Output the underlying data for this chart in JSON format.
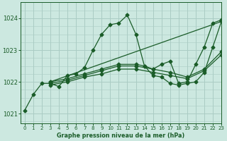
{
  "title": "Graphe pression niveau de la mer (hPa)",
  "bg_color": "#cce8e0",
  "grid_color": "#aaccc4",
  "line_color": "#1a5c28",
  "xlim": [
    -0.5,
    23
  ],
  "ylim": [
    1020.7,
    1024.5
  ],
  "xticks": [
    0,
    1,
    2,
    3,
    4,
    5,
    6,
    7,
    8,
    9,
    10,
    11,
    12,
    13,
    14,
    15,
    16,
    17,
    18,
    19,
    20,
    21,
    22,
    23
  ],
  "yticks": [
    1021,
    1022,
    1023,
    1024
  ],
  "lines": [
    {
      "x": [
        0,
        1,
        2,
        3,
        4,
        5,
        6,
        7,
        8,
        9,
        10,
        11,
        12,
        13,
        14,
        15,
        16,
        17,
        18,
        19,
        20,
        21,
        22,
        23
      ],
      "y": [
        1021.1,
        1021.6,
        1021.95,
        1021.95,
        1021.85,
        1022.2,
        1022.25,
        1022.45,
        1023.0,
        1023.5,
        1023.8,
        1023.85,
        1024.1,
        1023.5,
        1022.5,
        1022.2,
        1022.15,
        1021.95,
        1021.9,
        1021.95,
        1022.0,
        1022.3,
        1023.1,
        1023.9
      ],
      "marker": "D",
      "markersize": 2.5
    },
    {
      "x": [
        3,
        23
      ],
      "y": [
        1022.0,
        1023.9
      ],
      "marker": "D",
      "markersize": 2.5
    },
    {
      "x": [
        3,
        5,
        7,
        9,
        11,
        13,
        14,
        15,
        16,
        17,
        18,
        19,
        20,
        21,
        22,
        23
      ],
      "y": [
        1022.0,
        1022.1,
        1022.25,
        1022.4,
        1022.55,
        1022.55,
        1022.5,
        1022.4,
        1022.55,
        1022.65,
        1021.95,
        1022.0,
        1022.55,
        1023.1,
        1023.85,
        1023.95
      ],
      "marker": "D",
      "markersize": 2.5
    },
    {
      "x": [
        3,
        5,
        7,
        9,
        11,
        13,
        15,
        17,
        19,
        21,
        23
      ],
      "y": [
        1021.95,
        1022.05,
        1022.2,
        1022.35,
        1022.5,
        1022.5,
        1022.4,
        1022.3,
        1022.15,
        1022.4,
        1022.95
      ],
      "marker": "D",
      "markersize": 2.5
    },
    {
      "x": [
        3,
        5,
        7,
        9,
        11,
        13,
        15,
        17,
        19,
        21,
        23
      ],
      "y": [
        1021.9,
        1022.0,
        1022.15,
        1022.25,
        1022.4,
        1022.4,
        1022.3,
        1022.2,
        1022.1,
        1022.35,
        1022.85
      ],
      "marker": "D",
      "markersize": 2.5
    }
  ]
}
